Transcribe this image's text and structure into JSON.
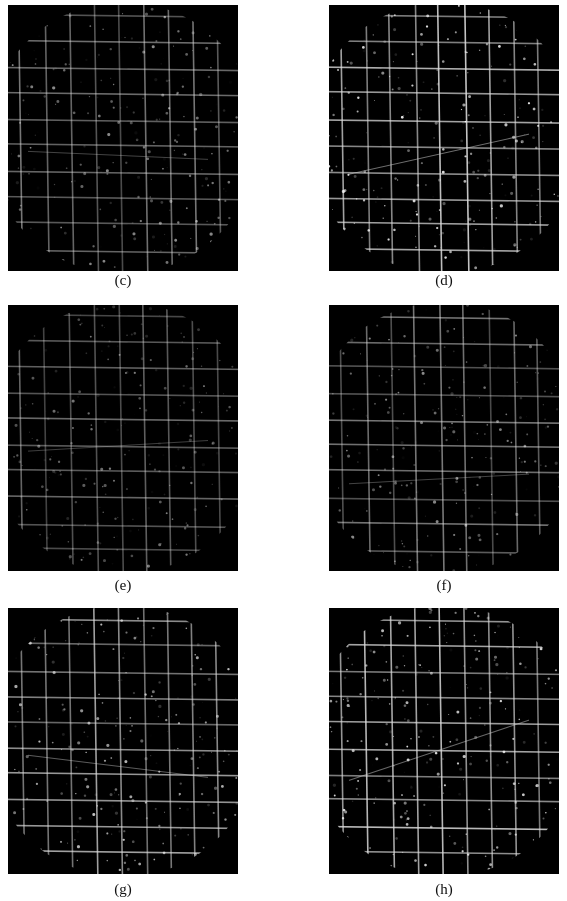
{
  "figure": {
    "panels": [
      {
        "label": "(c)"
      },
      {
        "label": "(d)"
      },
      {
        "label": "(e)"
      },
      {
        "label": "(f)"
      },
      {
        "label": "(g)"
      },
      {
        "label": "(h)"
      }
    ]
  }
}
